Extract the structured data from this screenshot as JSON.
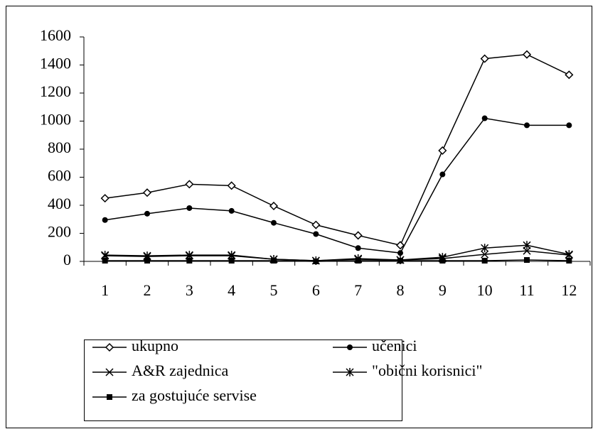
{
  "chart_data": {
    "type": "line",
    "categories": [
      "1",
      "2",
      "3",
      "4",
      "5",
      "6",
      "7",
      "8",
      "9",
      "10",
      "11",
      "12"
    ],
    "series": [
      {
        "name": "ukupno",
        "color": "#000000",
        "marker": "diamond",
        "values": [
          450,
          490,
          550,
          540,
          395,
          260,
          185,
          115,
          790,
          1445,
          1475,
          1330
        ]
      },
      {
        "name": "učenici",
        "color": "#000000",
        "marker": "circle",
        "values": [
          295,
          340,
          380,
          360,
          275,
          195,
          95,
          60,
          620,
          1020,
          970,
          970
        ]
      },
      {
        "name": "A&R zajednica",
        "color": "#000000",
        "marker": "x",
        "values": [
          40,
          35,
          40,
          40,
          15,
          5,
          15,
          10,
          20,
          50,
          75,
          45
        ]
      },
      {
        "name": "\"obični korisnici\"",
        "color": "#000000",
        "marker": "star",
        "values": [
          45,
          40,
          45,
          45,
          15,
          5,
          20,
          10,
          30,
          95,
          115,
          50
        ]
      },
      {
        "name": "za gostujuće servise",
        "color": "#000000",
        "marker": "square",
        "values": [
          5,
          5,
          5,
          5,
          5,
          0,
          5,
          5,
          5,
          5,
          10,
          5
        ]
      }
    ],
    "ylim": [
      0,
      1600
    ],
    "yticks": [
      0,
      200,
      400,
      600,
      800,
      1000,
      1200,
      1400,
      1600
    ],
    "grid": false,
    "legend": "bottom"
  }
}
